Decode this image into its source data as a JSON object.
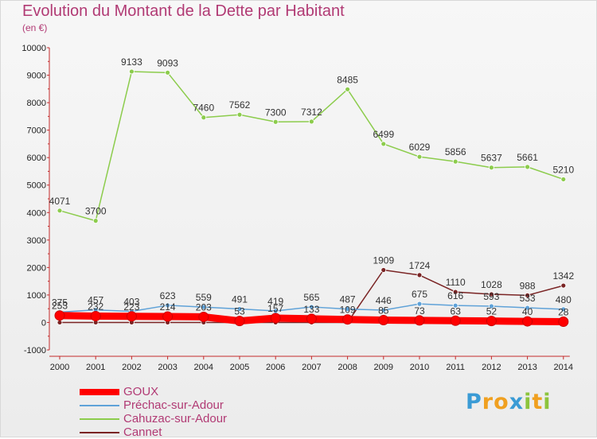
{
  "chart_data": {
    "type": "line",
    "title": "Evolution du Montant de la Dette par Habitant",
    "subtitle": "(en €)",
    "xlabel": "",
    "ylabel": "",
    "categories": [
      "2000",
      "2001",
      "2002",
      "2003",
      "2004",
      "2005",
      "2006",
      "2007",
      "2008",
      "2009",
      "2010",
      "2011",
      "2012",
      "2013",
      "2014"
    ],
    "ylim": [
      -1000,
      10000
    ],
    "yticks": [
      -1000,
      0,
      1000,
      2000,
      3000,
      4000,
      5000,
      6000,
      7000,
      8000,
      9000,
      10000
    ],
    "grid": false,
    "legend_position": "bottom-left",
    "series": [
      {
        "name": "GOUX",
        "color": "#ff0000",
        "values": [
          253,
          232,
          223,
          214,
          203,
          53,
          157,
          133,
          109,
          85,
          73,
          63,
          52,
          40,
          28
        ]
      },
      {
        "name": "Préchac-sur-Adour",
        "color": "#5fa2d8",
        "values": [
          375,
          457,
          403,
          623,
          559,
          491,
          419,
          565,
          487,
          446,
          675,
          616,
          593,
          533,
          480
        ]
      },
      {
        "name": "Cahuzac-sur-Adour",
        "color": "#8ccc4c",
        "values": [
          4071,
          3700,
          9133,
          9093,
          7460,
          7562,
          7300,
          7312,
          8485,
          6499,
          6029,
          5856,
          5637,
          5661,
          5210
        ]
      },
      {
        "name": "Cannet",
        "color": "#7a2424",
        "values": [
          0,
          0,
          0,
          0,
          0,
          0,
          0,
          0,
          0,
          1909,
          1724,
          1110,
          1028,
          988,
          1342
        ]
      }
    ]
  },
  "logo": {
    "text": "Proxiti",
    "letters": [
      {
        "ch": "P",
        "color": "#3a9bd5"
      },
      {
        "ch": "r",
        "color": "#f0a020"
      },
      {
        "ch": "o",
        "color": "#f0a020"
      },
      {
        "ch": "x",
        "color": "#3a9bd5"
      },
      {
        "ch": "i",
        "color": "#8cc43c"
      },
      {
        "ch": "t",
        "color": "#f0a020"
      },
      {
        "ch": "i",
        "color": "#8cc43c"
      }
    ]
  }
}
